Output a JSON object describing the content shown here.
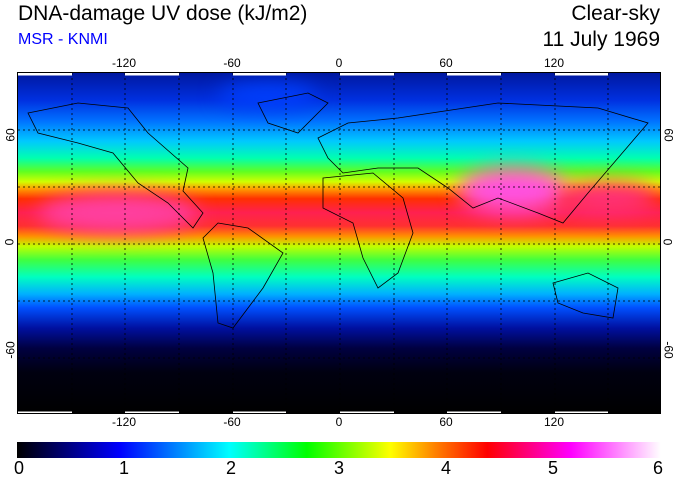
{
  "header": {
    "title": "DNA-damage UV dose (kJ/m2)",
    "source": "MSR - KNMI",
    "sky_condition": "Clear-sky",
    "date": "11 July 1969"
  },
  "map": {
    "lon_labels": [
      "-120",
      "-60",
      "0",
      "60",
      "120"
    ],
    "lat_labels_left": [
      "60",
      "0",
      "-60"
    ],
    "lat_labels_right": [
      "60",
      "0",
      "-60"
    ]
  },
  "colorbar": {
    "labels": [
      "0",
      "1",
      "2",
      "3",
      "4",
      "5",
      "6"
    ],
    "min": 0,
    "max": 6,
    "colors": [
      "#000000",
      "#0000ff",
      "#00ffff",
      "#00ff00",
      "#ffff00",
      "#ff8000",
      "#ff0000",
      "#ff00ff",
      "#ffffff"
    ]
  }
}
